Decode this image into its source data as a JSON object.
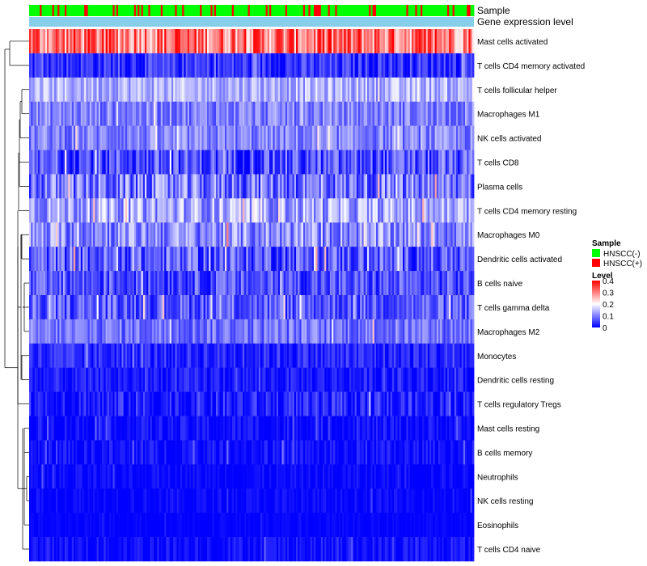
{
  "chart_data": {
    "type": "heatmap",
    "annotation_tracks": [
      {
        "label": "Sample"
      },
      {
        "label": "Gene expression level"
      }
    ],
    "rows": [
      {
        "label": "Mast cells activated",
        "mean": 0.31,
        "spread": 0.1
      },
      {
        "label": "T cells CD4 memory activated",
        "mean": 0.04,
        "spread": 0.05
      },
      {
        "label": "T cells follicular helper",
        "mean": 0.14,
        "spread": 0.05
      },
      {
        "label": "Macrophages M1",
        "mean": 0.1,
        "spread": 0.05
      },
      {
        "label": "NK cells activated",
        "mean": 0.1,
        "spread": 0.05
      },
      {
        "label": "T cells CD8",
        "mean": 0.06,
        "spread": 0.07
      },
      {
        "label": "Plasma cells",
        "mean": 0.09,
        "spread": 0.08
      },
      {
        "label": "T cells CD4 memory resting",
        "mean": 0.13,
        "spread": 0.07
      },
      {
        "label": "Macrophages M0",
        "mean": 0.11,
        "spread": 0.07
      },
      {
        "label": "Dendritic cells activated",
        "mean": 0.07,
        "spread": 0.07
      },
      {
        "label": "B cells naive",
        "mean": 0.06,
        "spread": 0.06
      },
      {
        "label": "T cells gamma delta",
        "mean": 0.07,
        "spread": 0.06
      },
      {
        "label": "Macrophages M2",
        "mean": 0.09,
        "spread": 0.05
      },
      {
        "label": "Monocytes",
        "mean": 0.03,
        "spread": 0.04
      },
      {
        "label": "Dendritic cells resting",
        "mean": 0.02,
        "spread": 0.03
      },
      {
        "label": "T cells regulatory  Tregs",
        "mean": 0.02,
        "spread": 0.05
      },
      {
        "label": "Mast cells resting",
        "mean": 0.01,
        "spread": 0.03
      },
      {
        "label": "B cells memory",
        "mean": 0.01,
        "spread": 0.03
      },
      {
        "label": "Neutrophils",
        "mean": 0.005,
        "spread": 0.02
      },
      {
        "label": "NK cells resting",
        "mean": 0.005,
        "spread": 0.02
      },
      {
        "label": "Eosinophils",
        "mean": 0.002,
        "spread": 0.01
      },
      {
        "label": "T cells CD4 naive",
        "mean": 0.01,
        "spread": 0.03
      }
    ],
    "n_samples": 250,
    "sample_positive_fraction": 0.22,
    "color_scale": {
      "min": 0,
      "max": 0.4,
      "low": "#0000ff",
      "mid": "#ffffff",
      "high": "#ff0000"
    },
    "legend": {
      "position": "right",
      "sample_title": "Sample",
      "sample_entries": [
        {
          "label": "HNSCC(-)",
          "color": "#00ff00"
        },
        {
          "label": "HNSCC(+)",
          "color": "#ff0000"
        }
      ],
      "level_title": "Level",
      "level_ticks": [
        {
          "label": "0.4",
          "value": 0.4
        },
        {
          "label": "0.3",
          "value": 0.3
        },
        {
          "label": "0.2",
          "value": 0.2
        },
        {
          "label": "0.1",
          "value": 0.1
        },
        {
          "label": "0",
          "value": 0
        }
      ]
    },
    "colors": {
      "negative": "#00ff00",
      "positive": "#ff0000",
      "expression_track": "#87ceeb"
    }
  }
}
